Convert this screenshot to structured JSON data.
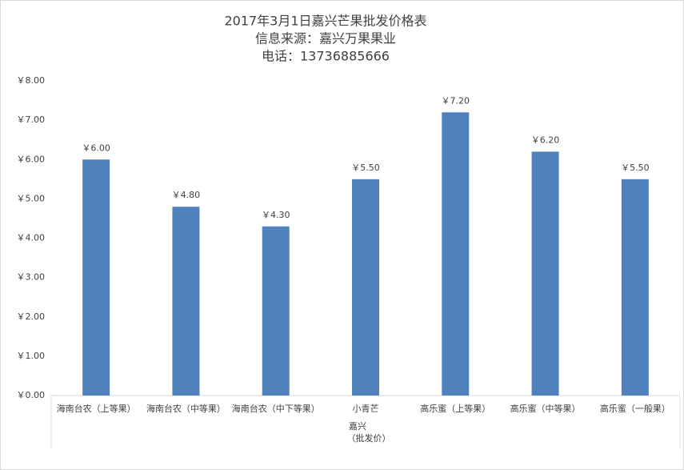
{
  "chart_data": {
    "type": "bar",
    "title_lines": [
      "2017年3月1日嘉兴芒果批发价格表",
      "信息来源：嘉兴万果果业",
      "电话：13736885666"
    ],
    "categories": [
      "海南台农（上等果）",
      "海南台农（中等果）",
      "海南台农（中下等果）",
      "小青芒",
      "高乐蜜（上等果）",
      "高乐蜜（中等果）",
      "高乐蜜（一般果）"
    ],
    "x_group_label": [
      "嘉兴",
      "（批发价）"
    ],
    "values": [
      6.0,
      4.8,
      4.3,
      5.5,
      7.2,
      6.2,
      5.5
    ],
    "value_labels": [
      "￥6.00",
      "￥4.80",
      "￥4.30",
      "￥5.50",
      "￥7.20",
      "￥6.20",
      "￥5.50"
    ],
    "color": "#4f81bd",
    "ylim": [
      0,
      8
    ],
    "yticks": [
      {
        "value": 0,
        "label": "￥0.00"
      },
      {
        "value": 1,
        "label": "￥1.00"
      },
      {
        "value": 2,
        "label": "￥2.00"
      },
      {
        "value": 3,
        "label": "￥3.00"
      },
      {
        "value": 4,
        "label": "￥4.00"
      },
      {
        "value": 5,
        "label": "￥5.00"
      },
      {
        "value": 6,
        "label": "￥6.00"
      },
      {
        "value": 7,
        "label": "￥7.00"
      },
      {
        "value": 8,
        "label": "￥8.00"
      }
    ],
    "grid": false
  }
}
